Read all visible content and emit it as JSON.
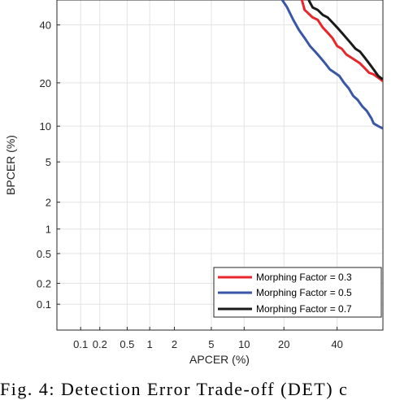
{
  "chart_data": {
    "type": "line",
    "title": "",
    "xlabel": "APCER (%)",
    "ylabel": "BPCER (%)",
    "x_scale": "probit",
    "y_scale": "probit",
    "xlim": [
      0.04,
      60
    ],
    "ylim": [
      0.04,
      50
    ],
    "x_ticks": [
      0.1,
      0.2,
      0.5,
      1,
      2,
      5,
      10,
      20,
      40
    ],
    "x_tick_labels": [
      "0.1",
      "0.2",
      "0.5",
      "1",
      "2",
      "5",
      "10",
      "20",
      "40"
    ],
    "y_ticks": [
      0.1,
      0.2,
      0.5,
      1,
      2,
      5,
      10,
      20,
      40
    ],
    "y_tick_labels": [
      "0.1",
      "0.2",
      "0.5",
      "1",
      "2",
      "5",
      "10",
      "20",
      "40"
    ],
    "grid": true,
    "legend_position": "bottom-right",
    "series": [
      {
        "name": "Morphing Factor = 0.3",
        "color": "#e8262b",
        "x": [
          26,
          27,
          28,
          30,
          32,
          34,
          36,
          38,
          40,
          42,
          44,
          46,
          48,
          50,
          52,
          54,
          56,
          58,
          60
        ],
        "y": [
          50,
          46,
          45,
          43,
          42,
          39,
          37,
          35,
          32,
          31,
          29,
          28,
          27,
          26,
          24.5,
          23,
          22.5,
          21.5,
          20.5
        ]
      },
      {
        "name": "Morphing Factor = 0.5",
        "color": "#3a57a7",
        "x": [
          19.5,
          21,
          23,
          25,
          27,
          29,
          31,
          33,
          35,
          37,
          39,
          41,
          43,
          45,
          47,
          49,
          51,
          53,
          55,
          56,
          58,
          60
        ],
        "y": [
          50,
          47,
          42,
          38,
          35,
          32,
          30,
          28,
          26,
          24,
          23,
          22,
          20,
          18.5,
          16.5,
          15.5,
          14,
          13,
          11.5,
          10.5,
          10,
          9.6
        ]
      },
      {
        "name": "Morphing Factor = 0.7",
        "color": "#1a1a1a",
        "x": [
          28.5,
          30,
          32,
          34,
          36,
          38,
          40,
          42,
          44,
          46,
          48,
          50,
          52,
          54,
          56,
          58,
          60
        ],
        "y": [
          50,
          47,
          46,
          44,
          43,
          41,
          39,
          37,
          35,
          33,
          31,
          30,
          28,
          26,
          24,
          22,
          21
        ]
      }
    ]
  },
  "caption": "Fig. 4: Detection Error Trade-off (DET) c"
}
